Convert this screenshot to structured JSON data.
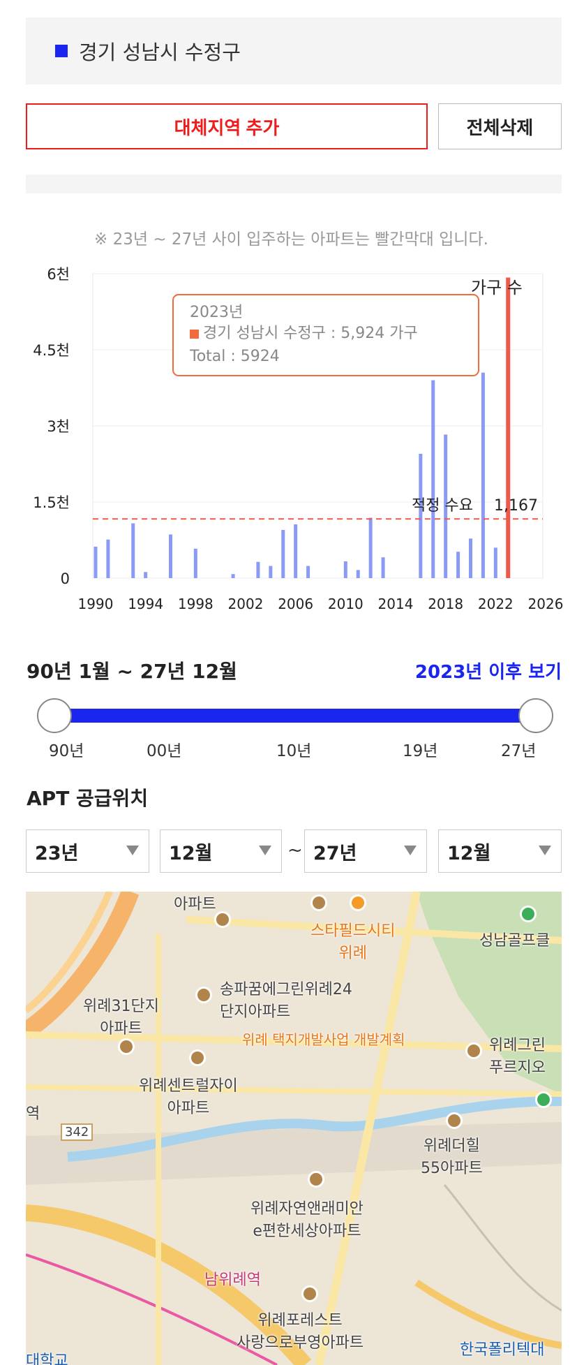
{
  "region": {
    "name": "경기 성남시 수정구",
    "color": "#1a25f0"
  },
  "buttons": {
    "add_region": "대체지역 추가",
    "delete_all": "전체삭제"
  },
  "chart_note": "※ 23년 ~ 27년 사이 입주하는 아파트는 빨간막대 입니다.",
  "chart_data": {
    "type": "bar",
    "ylabel": "가구 수",
    "y_ticks": [
      "0",
      "1.5천",
      "3천",
      "4.5천",
      "6천"
    ],
    "x_ticks": [
      "1990",
      "1994",
      "1998",
      "2002",
      "2006",
      "2010",
      "2014",
      "2018",
      "2022",
      "2026"
    ],
    "ylim": [
      0,
      6000
    ],
    "xlim": [
      1990,
      2026
    ],
    "series": [
      {
        "color": "#8a9bf5",
        "points": [
          {
            "x": 1990,
            "y": 620
          },
          {
            "x": 1991,
            "y": 760
          },
          {
            "x": 1993,
            "y": 1080
          },
          {
            "x": 1994,
            "y": 120
          },
          {
            "x": 1996,
            "y": 860
          },
          {
            "x": 1998,
            "y": 580
          },
          {
            "x": 2001,
            "y": 80
          },
          {
            "x": 2003,
            "y": 320
          },
          {
            "x": 2004,
            "y": 240
          },
          {
            "x": 2005,
            "y": 950
          },
          {
            "x": 2006,
            "y": 1060
          },
          {
            "x": 2007,
            "y": 240
          },
          {
            "x": 2010,
            "y": 330
          },
          {
            "x": 2011,
            "y": 160
          },
          {
            "x": 2012,
            "y": 1190
          },
          {
            "x": 2013,
            "y": 410
          },
          {
            "x": 2016,
            "y": 2450
          },
          {
            "x": 2017,
            "y": 3900
          },
          {
            "x": 2018,
            "y": 2830
          },
          {
            "x": 2019,
            "y": 520
          },
          {
            "x": 2020,
            "y": 780
          },
          {
            "x": 2021,
            "y": 4050
          },
          {
            "x": 2022,
            "y": 600
          }
        ]
      },
      {
        "color": "#f0594a",
        "points": [
          {
            "x": 2023,
            "y": 5924
          }
        ]
      }
    ],
    "reference_line": {
      "value": 1167,
      "label": "적정 수요",
      "value_label": "1,167",
      "color": "#f0594a"
    },
    "tooltip": {
      "year": "2023년",
      "series_line": "경기 성남시 수정구 : 5,924 가구",
      "total": "Total : 5924",
      "marker_color": "#f36a3d"
    },
    "grid": true
  },
  "period": {
    "label": "90년 1월 ~ 27년 12월",
    "view_after": "2023년 이후 보기"
  },
  "slider": {
    "ticks": [
      "90년",
      "00년",
      "10년",
      "19년",
      "27년"
    ],
    "start": "90년",
    "end": "27년"
  },
  "apt_supply": {
    "title": "APT 공급위치",
    "from_year": "23년",
    "from_month": "12월",
    "separator": "~",
    "to_year": "27년",
    "to_month": "12월"
  },
  "map": {
    "labels": {
      "l1": "아파트",
      "l2": "스타필드시티\n위례",
      "l3": "성남골프클",
      "l4": "송파꿈에그린위례24\n단지아파트",
      "l5": "위례31단지\n아파트",
      "l6": "위례 택지개발사업 개발계획",
      "l7": "위례그린\n푸르지오",
      "l8": "위례센트럴자이\n아파트",
      "l9": "위례더힐\n55아파트",
      "l10": "342",
      "l11": "위례자연앤래미안\ne편한세상아파트",
      "l12": "남위례역",
      "l13": "위례포레스트\n사랑으로부영아파트",
      "l14": "한국폴리텍대",
      "l15": "대학교",
      "l16": "역",
      "l17": "역"
    }
  }
}
